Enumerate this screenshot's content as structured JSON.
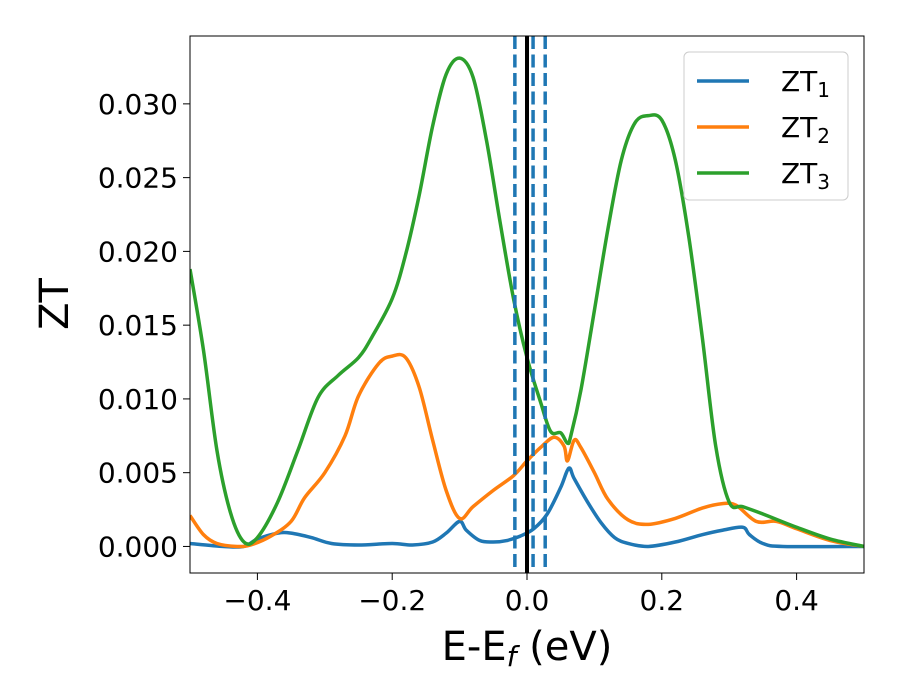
{
  "chart_data": {
    "type": "line",
    "xlabel": "E-E",
    "xlabel_sub": "f",
    "xlabel_unit": " (eV)",
    "ylabel": "ZT",
    "xlim": [
      -0.5,
      0.5
    ],
    "ylim": [
      -0.0018,
      0.0346
    ],
    "grid": false,
    "legend_placement": "top-right",
    "x_ticks": [
      {
        "value": -0.4,
        "label": "−0.4"
      },
      {
        "value": -0.2,
        "label": "−0.2"
      },
      {
        "value": 0.0,
        "label": "0.0"
      },
      {
        "value": 0.2,
        "label": "0.2"
      },
      {
        "value": 0.4,
        "label": "0.4"
      }
    ],
    "y_ticks": [
      {
        "value": 0.0,
        "label": "0.000"
      },
      {
        "value": 0.005,
        "label": "0.005"
      },
      {
        "value": 0.01,
        "label": "0.010"
      },
      {
        "value": 0.015,
        "label": "0.015"
      },
      {
        "value": 0.02,
        "label": "0.020"
      },
      {
        "value": 0.025,
        "label": "0.025"
      },
      {
        "value": 0.03,
        "label": "0.030"
      }
    ],
    "vlines": [
      {
        "x": 0.0,
        "style": "solid",
        "color": "#000000"
      },
      {
        "x": -0.018,
        "style": "dashed",
        "color": "#1f77b4"
      },
      {
        "x": 0.009,
        "style": "dashed",
        "color": "#1f77b4"
      },
      {
        "x": 0.027,
        "style": "dashed",
        "color": "#1f77b4"
      }
    ],
    "series": [
      {
        "name": "ZT",
        "name_sub": "1",
        "color": "#1f77b4",
        "points": [
          [
            -0.5,
            0.0002
          ],
          [
            -0.45,
            0.0
          ],
          [
            -0.42,
            0.0
          ],
          [
            -0.4,
            0.0005
          ],
          [
            -0.37,
            0.0009
          ],
          [
            -0.35,
            0.0009
          ],
          [
            -0.32,
            0.0006
          ],
          [
            -0.29,
            0.0002
          ],
          [
            -0.25,
            0.0001
          ],
          [
            -0.2,
            0.0002
          ],
          [
            -0.17,
            0.0001
          ],
          [
            -0.14,
            0.0003
          ],
          [
            -0.12,
            0.0009
          ],
          [
            -0.1,
            0.0017
          ],
          [
            -0.09,
            0.0011
          ],
          [
            -0.07,
            0.0004
          ],
          [
            -0.05,
            0.0003
          ],
          [
            -0.03,
            0.0004
          ],
          [
            -0.01,
            0.0007
          ],
          [
            0.01,
            0.0012
          ],
          [
            0.03,
            0.0022
          ],
          [
            0.05,
            0.004
          ],
          [
            0.062,
            0.0053
          ],
          [
            0.07,
            0.0046
          ],
          [
            0.09,
            0.003
          ],
          [
            0.11,
            0.0016
          ],
          [
            0.13,
            0.0006
          ],
          [
            0.15,
            0.0002
          ],
          [
            0.18,
            0.0
          ],
          [
            0.22,
            0.0003
          ],
          [
            0.26,
            0.0008
          ],
          [
            0.29,
            0.0011
          ],
          [
            0.32,
            0.0013
          ],
          [
            0.33,
            0.0008
          ],
          [
            0.35,
            0.0002
          ],
          [
            0.38,
            0.0
          ],
          [
            0.5,
            0.0
          ]
        ]
      },
      {
        "name": "ZT",
        "name_sub": "2",
        "color": "#ff7f0e",
        "points": [
          [
            -0.5,
            0.0021
          ],
          [
            -0.48,
            0.0008
          ],
          [
            -0.46,
            0.0002
          ],
          [
            -0.43,
            0.0
          ],
          [
            -0.41,
            0.0001
          ],
          [
            -0.38,
            0.0007
          ],
          [
            -0.35,
            0.0017
          ],
          [
            -0.33,
            0.0033
          ],
          [
            -0.3,
            0.005
          ],
          [
            -0.27,
            0.0075
          ],
          [
            -0.25,
            0.0102
          ],
          [
            -0.22,
            0.0124
          ],
          [
            -0.2,
            0.0129
          ],
          [
            -0.18,
            0.0128
          ],
          [
            -0.16,
            0.0108
          ],
          [
            -0.14,
            0.0072
          ],
          [
            -0.12,
            0.0038
          ],
          [
            -0.1,
            0.0019
          ],
          [
            -0.08,
            0.0027
          ],
          [
            -0.05,
            0.0038
          ],
          [
            -0.02,
            0.0048
          ],
          [
            0.0,
            0.0058
          ],
          [
            0.02,
            0.0067
          ],
          [
            0.04,
            0.0074
          ],
          [
            0.055,
            0.0068
          ],
          [
            0.06,
            0.0058
          ],
          [
            0.07,
            0.0072
          ],
          [
            0.08,
            0.0067
          ],
          [
            0.1,
            0.005
          ],
          [
            0.12,
            0.0032
          ],
          [
            0.15,
            0.0018
          ],
          [
            0.18,
            0.0015
          ],
          [
            0.22,
            0.0019
          ],
          [
            0.26,
            0.0026
          ],
          [
            0.29,
            0.0029
          ],
          [
            0.31,
            0.0028
          ],
          [
            0.34,
            0.0017
          ],
          [
            0.37,
            0.0017
          ],
          [
            0.4,
            0.0012
          ],
          [
            0.45,
            0.0004
          ],
          [
            0.5,
            0.0
          ]
        ]
      },
      {
        "name": "ZT",
        "name_sub": "3",
        "color": "#2ca02c",
        "points": [
          [
            -0.5,
            0.0188
          ],
          [
            -0.48,
            0.0133
          ],
          [
            -0.46,
            0.0065
          ],
          [
            -0.44,
            0.0023
          ],
          [
            -0.42,
            0.0003
          ],
          [
            -0.4,
            0.0006
          ],
          [
            -0.37,
            0.003
          ],
          [
            -0.34,
            0.0065
          ],
          [
            -0.31,
            0.0101
          ],
          [
            -0.28,
            0.0116
          ],
          [
            -0.25,
            0.0128
          ],
          [
            -0.23,
            0.0142
          ],
          [
            -0.2,
            0.0168
          ],
          [
            -0.18,
            0.0198
          ],
          [
            -0.16,
            0.0238
          ],
          [
            -0.14,
            0.0285
          ],
          [
            -0.12,
            0.032
          ],
          [
            -0.1,
            0.0331
          ],
          [
            -0.08,
            0.0318
          ],
          [
            -0.06,
            0.0275
          ],
          [
            -0.04,
            0.022
          ],
          [
            -0.02,
            0.0168
          ],
          [
            0.0,
            0.0128
          ],
          [
            0.02,
            0.0098
          ],
          [
            0.035,
            0.0078
          ],
          [
            0.05,
            0.0077
          ],
          [
            0.06,
            0.007
          ],
          [
            0.065,
            0.0075
          ],
          [
            0.08,
            0.0106
          ],
          [
            0.1,
            0.016
          ],
          [
            0.12,
            0.0215
          ],
          [
            0.14,
            0.0262
          ],
          [
            0.16,
            0.0287
          ],
          [
            0.18,
            0.0292
          ],
          [
            0.2,
            0.0289
          ],
          [
            0.22,
            0.0262
          ],
          [
            0.24,
            0.021
          ],
          [
            0.26,
            0.0142
          ],
          [
            0.28,
            0.0068
          ],
          [
            0.3,
            0.003
          ],
          [
            0.32,
            0.0027
          ],
          [
            0.35,
            0.0022
          ],
          [
            0.4,
            0.0013
          ],
          [
            0.45,
            0.0005
          ],
          [
            0.5,
            0.0
          ]
        ]
      }
    ]
  }
}
